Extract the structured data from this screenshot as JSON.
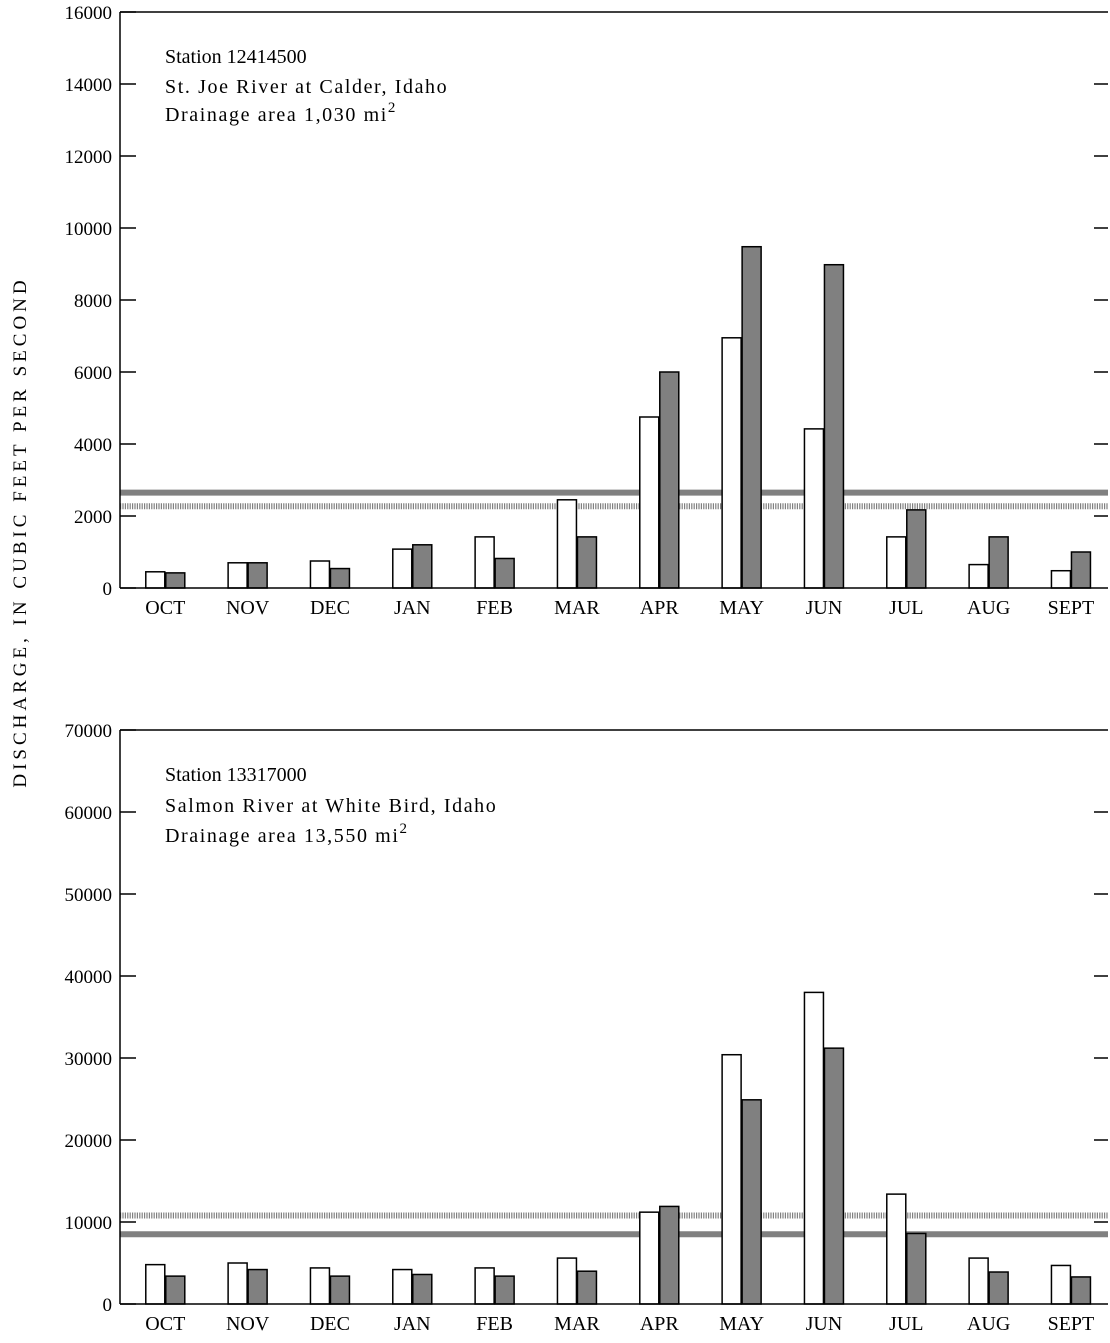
{
  "ylabel": "DISCHARGE, IN CUBIC FEET PER SECOND",
  "colors": {
    "open_bar": "#ffffff",
    "filled_bar": "#808080",
    "solid_line": "#808080",
    "dotted_line": "#808080",
    "axis": "#000000"
  },
  "chart_data": [
    {
      "type": "bar",
      "caption": [
        "Station 12414500",
        "St. Joe River at Calder, Idaho",
        "Drainage area 1,030 mi"
      ],
      "caption_superscript": "2",
      "categories": [
        "OCT",
        "NOV",
        "DEC",
        "JAN",
        "FEB",
        "MAR",
        "APR",
        "MAY",
        "JUN",
        "JUL",
        "AUG",
        "SEPT"
      ],
      "series": [
        {
          "style": "open",
          "values": [
            450,
            700,
            750,
            1080,
            1420,
            2450,
            4750,
            6950,
            4420,
            1420,
            650,
            480
          ]
        },
        {
          "style": "filled",
          "values": [
            420,
            700,
            540,
            1200,
            820,
            1420,
            6000,
            9480,
            8980,
            2170,
            1420,
            1000
          ]
        }
      ],
      "reference_lines": [
        {
          "style": "solid",
          "value": 2650
        },
        {
          "style": "dotted",
          "value": 2270
        }
      ],
      "yticks": [
        0,
        2000,
        4000,
        6000,
        8000,
        10000,
        12000,
        14000,
        16000
      ],
      "ylim": [
        0,
        16000
      ]
    },
    {
      "type": "bar",
      "caption": [
        "Station 13317000",
        "Salmon River at White Bird, Idaho",
        "Drainage area 13,550 mi"
      ],
      "caption_superscript": "2",
      "categories": [
        "OCT",
        "NOV",
        "DEC",
        "JAN",
        "FEB",
        "MAR",
        "APR",
        "MAY",
        "JUN",
        "JUL",
        "AUG",
        "SEPT"
      ],
      "series": [
        {
          "style": "open",
          "values": [
            4800,
            5000,
            4400,
            4200,
            4400,
            5600,
            11200,
            30400,
            38000,
            13400,
            5600,
            4700
          ]
        },
        {
          "style": "filled",
          "values": [
            3400,
            4200,
            3400,
            3600,
            3400,
            4000,
            11900,
            24900,
            31200,
            8600,
            3900,
            3300
          ]
        }
      ],
      "reference_lines": [
        {
          "style": "dotted",
          "value": 10800
        },
        {
          "style": "solid",
          "value": 8500
        }
      ],
      "yticks": [
        0,
        10000,
        20000,
        30000,
        40000,
        50000,
        60000,
        70000
      ],
      "ylim": [
        0,
        70000
      ]
    }
  ]
}
